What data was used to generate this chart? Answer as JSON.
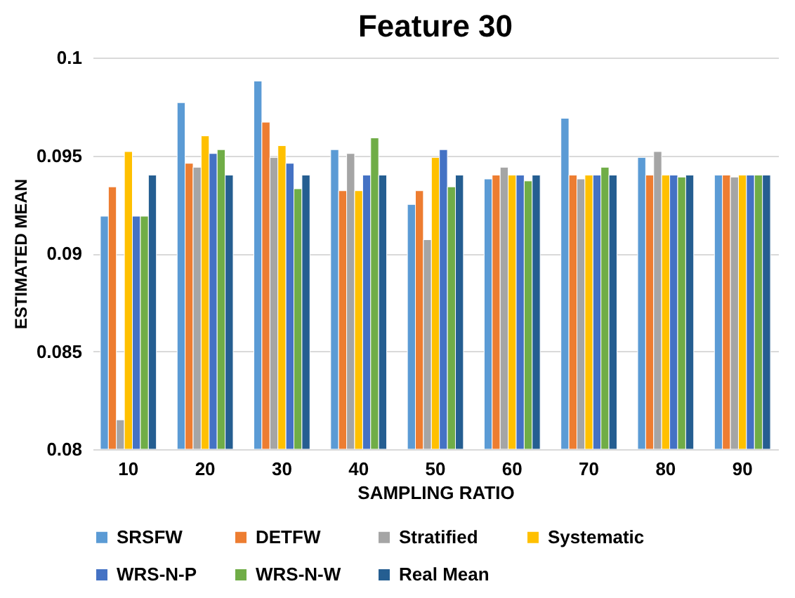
{
  "chart_data": {
    "type": "bar",
    "title": "Feature 30",
    "xlabel": "SAMPLING RATIO",
    "ylabel": "ESTIMATED MEAN",
    "categories": [
      "10",
      "20",
      "30",
      "40",
      "50",
      "60",
      "70",
      "80",
      "90"
    ],
    "ylim": [
      0.08,
      0.1
    ],
    "yticks": [
      {
        "value": 0.08,
        "label": "0.08"
      },
      {
        "value": 0.085,
        "label": "0.085"
      },
      {
        "value": 0.09,
        "label": "0.09"
      },
      {
        "value": 0.095,
        "label": "0.095"
      },
      {
        "value": 0.1,
        "label": "0.1"
      }
    ],
    "grid": "y",
    "legend": "bottom",
    "series": [
      {
        "name": "SRSFW",
        "color": "#5b9bd5",
        "values": [
          0.0919,
          0.0977,
          0.0988,
          0.0953,
          0.0925,
          0.0938,
          0.0969,
          0.0949,
          0.094
        ]
      },
      {
        "name": "DETFW",
        "color": "#ed7d31",
        "values": [
          0.0934,
          0.0946,
          0.0967,
          0.0932,
          0.0932,
          0.094,
          0.094,
          0.094,
          0.094
        ]
      },
      {
        "name": "Stratified",
        "color": "#a5a5a5",
        "values": [
          0.0815,
          0.0944,
          0.0949,
          0.0951,
          0.0907,
          0.0944,
          0.0938,
          0.0952,
          0.0939
        ]
      },
      {
        "name": "Systematic",
        "color": "#ffc000",
        "values": [
          0.0952,
          0.096,
          0.0955,
          0.0932,
          0.0949,
          0.094,
          0.094,
          0.094,
          0.094
        ]
      },
      {
        "name": "WRS-N-P",
        "color": "#4472c4",
        "values": [
          0.0919,
          0.0951,
          0.0946,
          0.094,
          0.0953,
          0.094,
          0.094,
          0.094,
          0.094
        ]
      },
      {
        "name": "WRS-N-W",
        "color": "#70ad47",
        "values": [
          0.0919,
          0.0953,
          0.0933,
          0.0959,
          0.0934,
          0.0937,
          0.0944,
          0.0939,
          0.094
        ]
      },
      {
        "name": "Real Mean",
        "color": "#255e91",
        "values": [
          0.094,
          0.094,
          0.094,
          0.094,
          0.094,
          0.094,
          0.094,
          0.094,
          0.094
        ]
      }
    ]
  }
}
